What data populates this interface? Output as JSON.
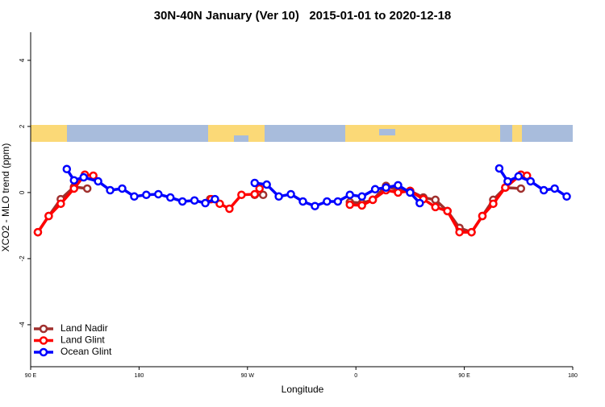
{
  "chart_data": {
    "type": "line",
    "title": "30N-40N January (Ver 10)   2015-01-01 to 2020-12-18",
    "xlabel": "Longitude",
    "ylabel": "XCO2 - MLO trend (ppm)",
    "xlim": [
      90,
      540
    ],
    "ylim": [
      -5.27,
      4.85
    ],
    "xticks": [
      {
        "value": 90,
        "label": "90 E"
      },
      180,
      {
        "value": 270,
        "label": "90 W"
      },
      {
        "value": 360,
        "label": "0"
      },
      {
        "value": 450,
        "label": "90 E"
      },
      {
        "value": 540,
        "label": "180"
      }
    ],
    "yticks": [
      4,
      2,
      0,
      -2,
      -4
    ],
    "grid": false,
    "legend": "bottom-left",
    "series": [
      {
        "name": "Land Nadir",
        "color": "#a0302e",
        "x": [
          96,
          105,
          115,
          126,
          137,
          null,
          239,
          null,
          276,
          283,
          null,
          355,
          365,
          374,
          385,
          395,
          405,
          416,
          426,
          436,
          446,
          456,
          465,
          474,
          484,
          497
        ],
        "values": [
          -1.2,
          -0.71,
          -0.2,
          0.17,
          0.12,
          null,
          -0.2,
          null,
          -0.07,
          -0.07,
          null,
          -0.29,
          -0.32,
          -0.22,
          0.2,
          0.07,
          0.05,
          -0.15,
          -0.22,
          -0.56,
          -1.07,
          -1.2,
          -0.71,
          -0.22,
          0.15,
          0.12
        ]
      },
      {
        "name": "Land Glint",
        "color": "#ff0000",
        "x": [
          96,
          105,
          115,
          126,
          135,
          142,
          null,
          240,
          247,
          255,
          265,
          276,
          280,
          null,
          355,
          365,
          374,
          385,
          395,
          405,
          416,
          426,
          436,
          446,
          456,
          465,
          474,
          484,
          497,
          502
        ],
        "values": [
          -1.2,
          -0.71,
          -0.34,
          0.12,
          0.54,
          0.51,
          null,
          -0.2,
          -0.34,
          -0.49,
          -0.07,
          -0.05,
          0.12,
          null,
          -0.37,
          -0.39,
          -0.22,
          0.07,
          0,
          0.05,
          -0.2,
          -0.44,
          -0.56,
          -1.2,
          -1.2,
          -0.71,
          -0.34,
          0.15,
          0.54,
          0.51
        ]
      },
      {
        "name": "Ocean Glint",
        "color": "#0000ff",
        "x": [
          120,
          126,
          134,
          146,
          156,
          166,
          176,
          186,
          196,
          206,
          216,
          226,
          235,
          243,
          null,
          276,
          286,
          296,
          306,
          316,
          326,
          336,
          345,
          355,
          365,
          376,
          385,
          395,
          405,
          413,
          null,
          479,
          486,
          495,
          505,
          516,
          525,
          535
        ],
        "values": [
          0.71,
          0.37,
          0.46,
          0.34,
          0.07,
          0.12,
          -0.12,
          -0.07,
          -0.05,
          -0.15,
          -0.27,
          -0.24,
          -0.32,
          -0.2,
          null,
          0.29,
          0.24,
          -0.12,
          -0.05,
          -0.27,
          -0.41,
          -0.27,
          -0.27,
          -0.07,
          -0.12,
          0.1,
          0.15,
          0.22,
          0,
          -0.32,
          null,
          0.73,
          0.34,
          0.49,
          0.34,
          0.07,
          0.12,
          -0.12
        ]
      }
    ]
  }
}
